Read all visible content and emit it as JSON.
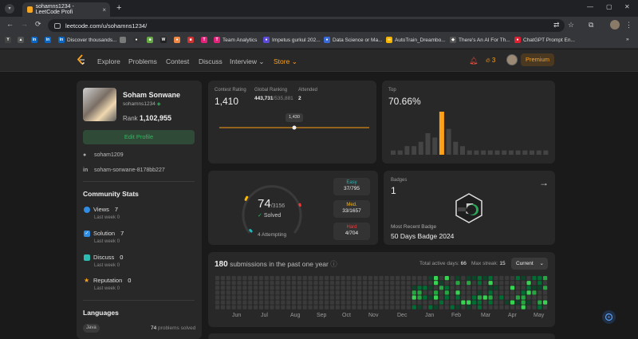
{
  "browser": {
    "tab_title": "sohamns1234 - LeetCode Profi",
    "url": "leetcode.com/u/sohamns1234/",
    "bookmarks": [
      "Discover thousands...",
      "Team Analytics",
      "Impetus gurkul 202...",
      "Data Science or Ma...",
      "AutoTrain_Dreambo...",
      "There's An AI For Th...",
      "ChatGPT Prompt En..."
    ]
  },
  "nav": {
    "links": [
      "Explore",
      "Problems",
      "Contest",
      "Discuss",
      "Interview",
      "Store"
    ],
    "streak": "3",
    "premium": "Premium"
  },
  "profile": {
    "name": "Soham Sonwane",
    "handle": "sohamns1234",
    "rank_label": "Rank",
    "rank": "1,102,955",
    "edit_label": "Edit Profile",
    "github": "soham1209",
    "linkedin": "soham-sonwane-8178bb227"
  },
  "community": {
    "title": "Community Stats",
    "stats": [
      {
        "label": "Views",
        "value": "7",
        "last_week": "Last week",
        "delta": "0"
      },
      {
        "label": "Solution",
        "value": "7",
        "last_week": "Last week",
        "delta": "0"
      },
      {
        "label": "Discuss",
        "value": "0",
        "last_week": "Last week",
        "delta": "0"
      },
      {
        "label": "Reputation",
        "value": "0",
        "last_week": "Last week",
        "delta": "0"
      }
    ]
  },
  "languages": {
    "title": "Languages",
    "items": [
      {
        "name": "Java",
        "count": "74",
        "suffix": "problems solved"
      }
    ]
  },
  "contest": {
    "rating_label": "Contest Rating",
    "rating": "1,410",
    "global_label": "Global Ranking",
    "global_rank": "443,731",
    "global_total": "/535,881",
    "attended_label": "Attended",
    "attended": "2",
    "tooltip": "1,430",
    "top_label": "Top",
    "top_value": "70.66%",
    "histogram": [
      1,
      1,
      2,
      2,
      3,
      5,
      4,
      10,
      6,
      3,
      2,
      1,
      1,
      1,
      1,
      1,
      1,
      1,
      1,
      1,
      1,
      1,
      1
    ],
    "highlight_index": 7
  },
  "solved": {
    "count": "74",
    "total": "/3156",
    "solved_label": "Solved",
    "attempting": "4 Attempting",
    "easy_solved": 37,
    "easy_total": 795,
    "medium_solved": 33,
    "medium_total": 1657,
    "hard_solved": 4,
    "hard_total": 704,
    "easy_label": "Easy",
    "easy": "37/795",
    "medium_label": "Med.",
    "medium": "33/1657",
    "hard_label": "Hard",
    "hard": "4/704",
    "colors": {
      "easy": "#1cbaba",
      "medium": "#ffb700",
      "hard": "#f63737"
    }
  },
  "badges": {
    "label": "Badges",
    "count": "1",
    "recent_label": "Most Recent Badge",
    "recent": "50 Days Badge 2024"
  },
  "submissions": {
    "count": "180",
    "title_suffix": "submissions in the past one year",
    "active_label": "Total active days:",
    "active_days": "66",
    "streak_label": "Max streak:",
    "max_streak": "15",
    "filter": "Current",
    "months": [
      "Jun",
      "Jul",
      "Aug",
      "Sep",
      "Oct",
      "Nov",
      "Dec",
      "Jan",
      "Feb",
      "Mar",
      "Apr",
      "May"
    ]
  }
}
